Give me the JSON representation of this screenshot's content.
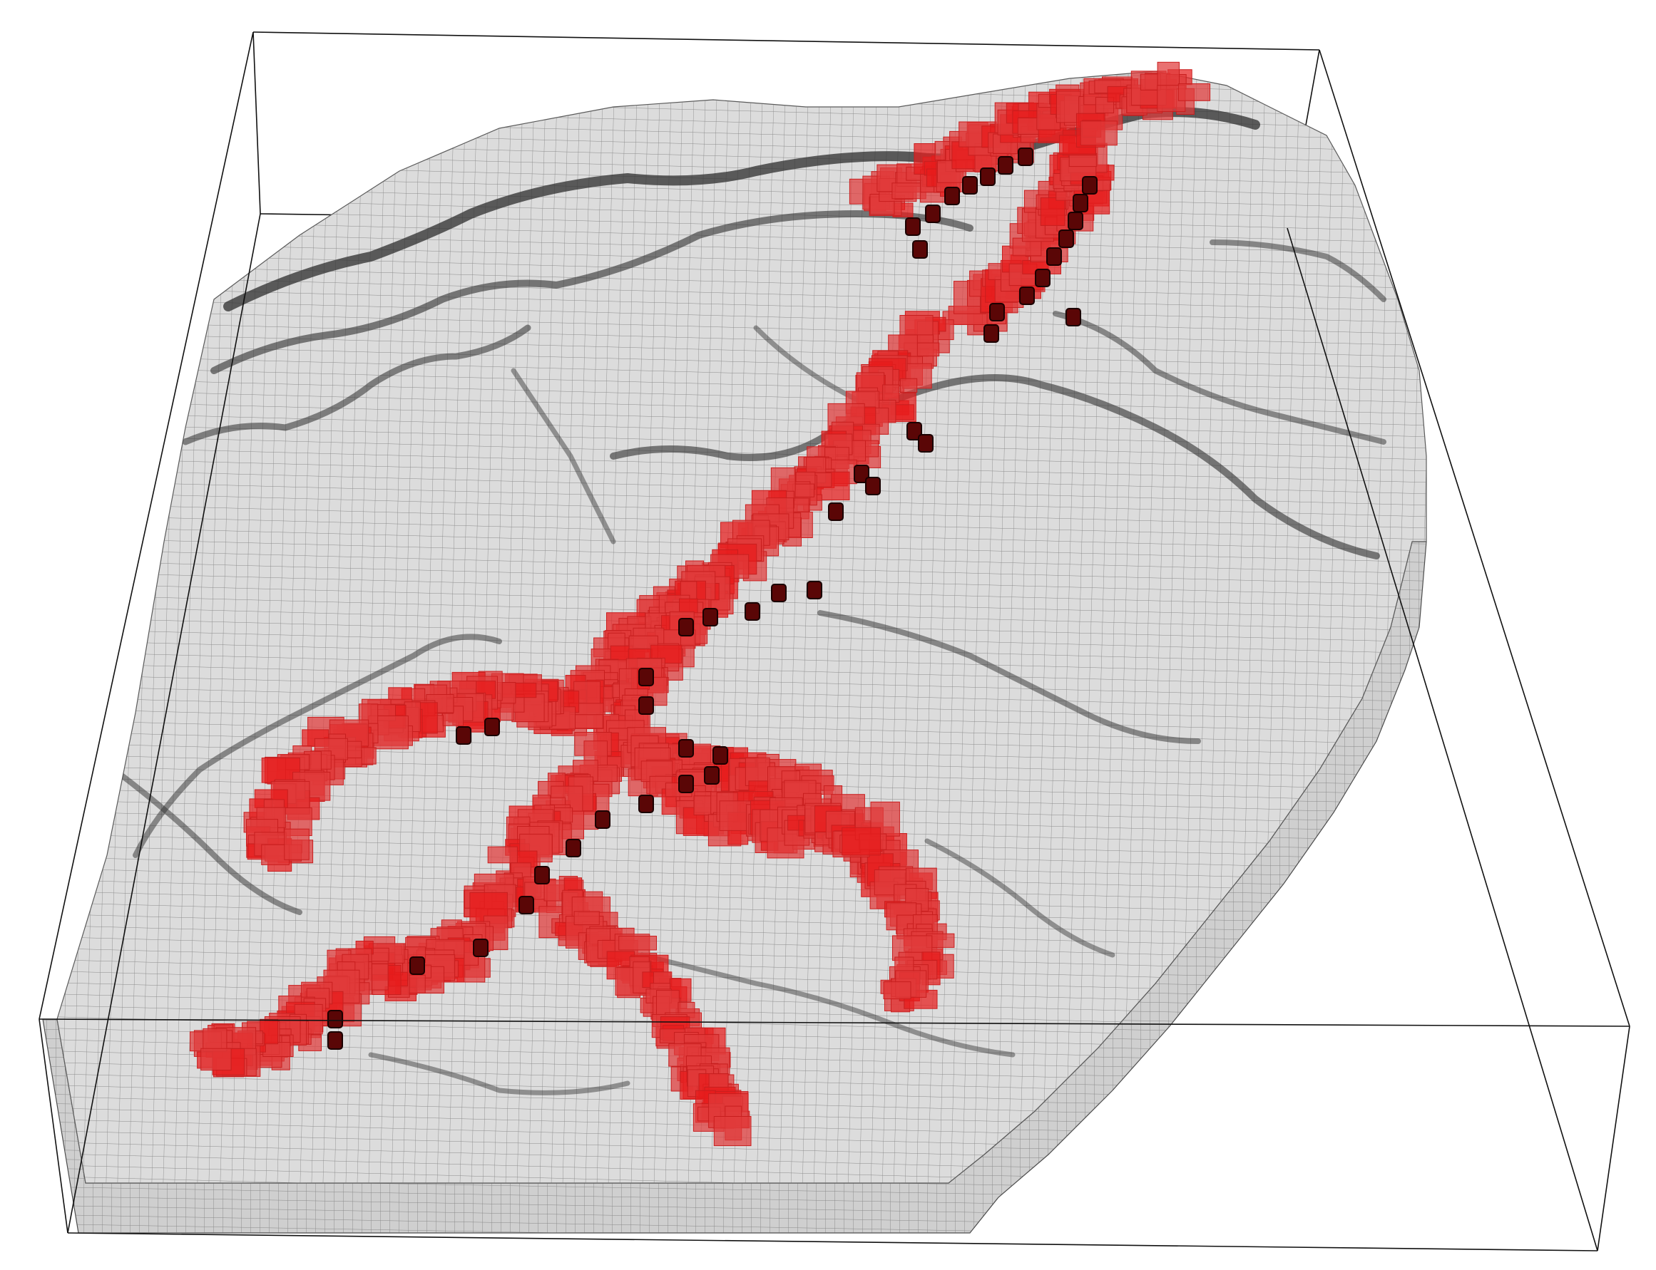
{
  "scene": {
    "kind": "3D voxel block model",
    "background_color": "#ffffff",
    "bounding_box_color": "#111111"
  },
  "terrain": {
    "surface_color": "#dcdcdc",
    "side_face_color": "#cfcfcf",
    "grid_color": "#6e6e6e",
    "valley_line_color": "#2e2e2e"
  },
  "plume": {
    "color": "#e03a3a",
    "opacity": 0.72,
    "highlight_color": "#e81c1c"
  },
  "wells": {
    "color": "#5a0606",
    "count": 45
  }
}
